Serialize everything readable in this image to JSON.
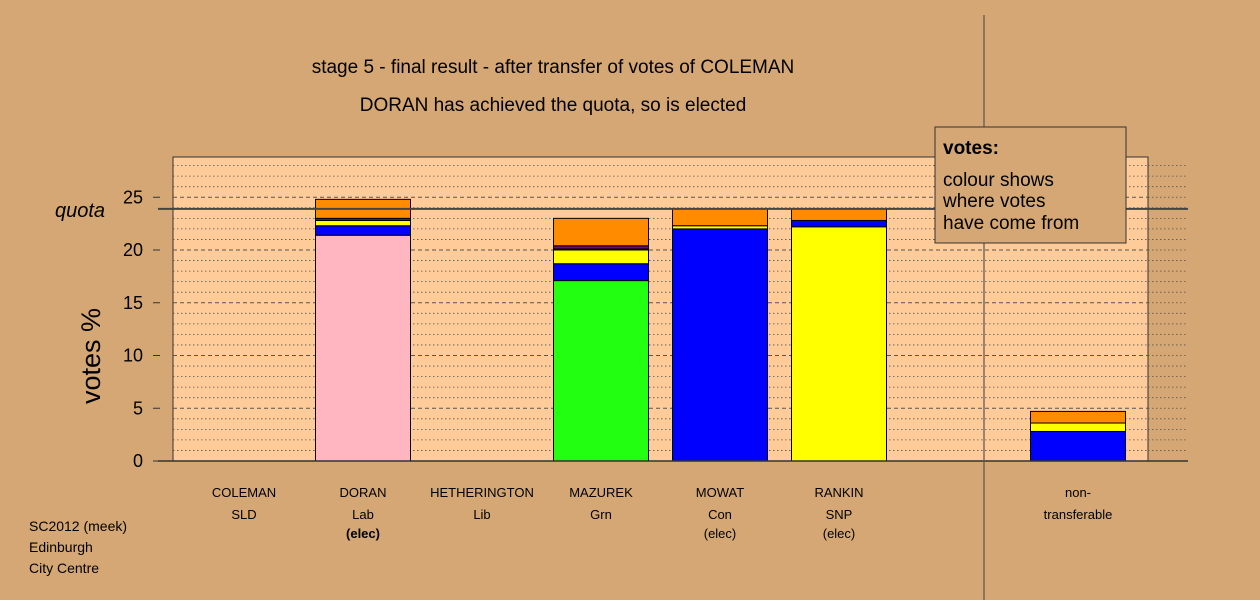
{
  "chart_data": {
    "type": "bar",
    "stacked": true,
    "title": "stage 5 - final result - after transfer of votes of COLEMAN",
    "subtitle": "DORAN has achieved the quota, so is elected",
    "ylabel": "votes %",
    "ylim": [
      0,
      29
    ],
    "yticks": [
      0,
      5,
      10,
      15,
      20,
      25
    ],
    "quota": 23.9,
    "quota_label": "quota",
    "grid": true,
    "legend": {
      "title": "votes:",
      "lines": [
        "colour shows",
        "where votes",
        "have come from"
      ],
      "placement": "top-right"
    },
    "candidates": [
      {
        "name": "COLEMAN",
        "party": "SLD",
        "status": "",
        "segments": []
      },
      {
        "name": "DORAN",
        "party": "Lab",
        "status": "(elec)",
        "status_bold": true,
        "segments": [
          {
            "color": "#FFB6C1",
            "value": 21.4
          },
          {
            "color": "#0000FF",
            "value": 0.9
          },
          {
            "color": "#FFFF00",
            "value": 0.5
          },
          {
            "color": "#7F007F",
            "value": 0.2
          },
          {
            "color": "#FF8C00",
            "value": 1.8
          }
        ]
      },
      {
        "name": "HETHERINGTON",
        "party": "Lib",
        "status": "",
        "segments": []
      },
      {
        "name": "MAZUREK",
        "party": "Grn",
        "status": "",
        "segments": [
          {
            "color": "#22FF11",
            "value": 17.1
          },
          {
            "color": "#0000FF",
            "value": 1.6
          },
          {
            "color": "#FFFF00",
            "value": 1.3
          },
          {
            "color": "#FF0000",
            "value": 0.1
          },
          {
            "color": "#7F007F",
            "value": 0.3
          },
          {
            "color": "#FF8C00",
            "value": 2.6
          }
        ]
      },
      {
        "name": "MOWAT",
        "party": "Con",
        "status": "(elec)",
        "segments": [
          {
            "color": "#0000FF",
            "value": 22.0
          },
          {
            "color": "#FFFF00",
            "value": 0.3
          },
          {
            "color": "#FF8C00",
            "value": 1.6
          }
        ]
      },
      {
        "name": "RANKIN",
        "party": "SNP",
        "status": "(elec)",
        "segments": [
          {
            "color": "#FFFF00",
            "value": 22.2
          },
          {
            "color": "#0000FF",
            "value": 0.6
          },
          {
            "color": "#FF8C00",
            "value": 1.1
          }
        ]
      }
    ],
    "nontransferable": {
      "name": "non-",
      "party": "transferable",
      "segments": [
        {
          "color": "#0000FF",
          "value": 2.8
        },
        {
          "color": "#FFFF00",
          "value": 0.8
        },
        {
          "color": "#FF8C00",
          "value": 1.1
        }
      ]
    },
    "colors": {
      "background": "#D4A774",
      "plot_background": "#FFCC99",
      "gridline": "#555555"
    }
  },
  "footer": {
    "line1": "SC2012 (meek)",
    "line2": "Edinburgh",
    "line3": "City Centre"
  }
}
